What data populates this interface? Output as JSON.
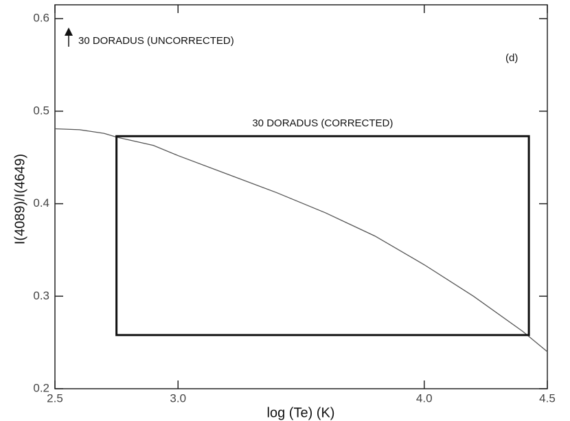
{
  "chart_data": {
    "type": "line",
    "x_label": "log (Te) (K)",
    "y_label": "I(4089)/I(4649)",
    "x": [
      2.5,
      2.6,
      2.7,
      2.75,
      2.9,
      3.0,
      3.2,
      3.4,
      3.6,
      3.8,
      4.0,
      4.2,
      4.4,
      4.5
    ],
    "values": [
      0.481,
      0.48,
      0.476,
      0.472,
      0.463,
      0.452,
      0.432,
      0.412,
      0.39,
      0.365,
      0.334,
      0.3,
      0.262,
      0.24
    ],
    "color": "#555555",
    "xlim": [
      2.5,
      4.5
    ],
    "xticks": [
      2.5,
      {
        "value": 3,
        "label": "3.0"
      },
      {
        "value": 4,
        "label": "4.0"
      },
      4.5
    ],
    "ylim": [
      0.2,
      0.615
    ],
    "yticks": [
      0.2,
      0.3,
      0.4,
      0.5,
      0.6
    ],
    "box": {
      "label": "30 DORADUS (CORRECTED)",
      "xlim": [
        2.75,
        4.425
      ],
      "ylim": [
        0.258,
        0.473
      ],
      "color": "#111111"
    },
    "annotations": [
      "30 DORADUS (UNCORRECTED)",
      "(d)"
    ]
  }
}
